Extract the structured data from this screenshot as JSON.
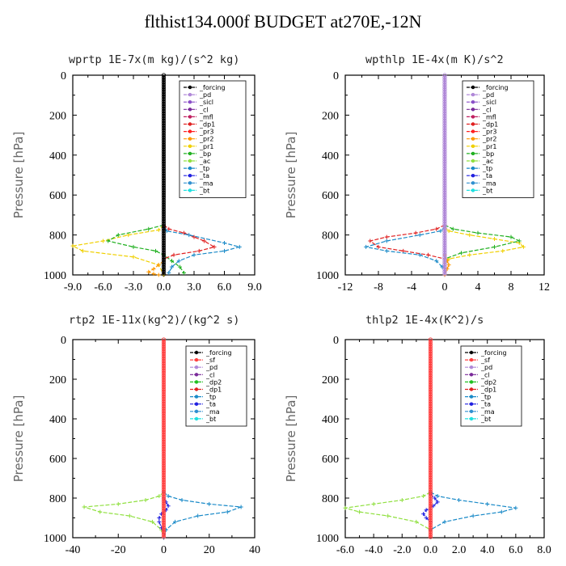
{
  "title": "flthist134.000f  BUDGET at270E,-12N",
  "colors": {
    "forcing": "#000000",
    "pd": "#b088d8",
    "sicl": "#8a4fc8",
    "cl": "#7a2a9a",
    "mfl": "#c02060",
    "dp1": "#e02020",
    "pr3": "#ff2020",
    "pr2": "#ff9900",
    "pr1": "#f0d000",
    "bp": "#20b020",
    "ac": "#90e040",
    "tp": "#1a8ac8",
    "ta": "#2020e0",
    "ma": "#3090d0",
    "bt": "#20e0e0",
    "sf": "#ff4040",
    "dp2": "#20c020"
  },
  "chart_data": [
    {
      "type": "line",
      "title": "wprtp   1E-7x(m kg)/(s^2 kg)",
      "ylabel": "Pressure [hPa]",
      "xlim": [
        -9.0,
        9.0
      ],
      "xticks": [
        -9.0,
        -6.0,
        -3.0,
        0.0,
        3.0,
        6.0,
        9.0
      ],
      "xtick_labels": [
        "-9.0",
        "-6.0",
        "-3.0",
        "0.0",
        "3.0",
        "6.0",
        "9.0"
      ],
      "ylim": [
        1000,
        0
      ],
      "yticks": [
        0,
        200,
        400,
        600,
        800,
        1000
      ],
      "legend": [
        "_forcing",
        "_pd",
        "_sicl",
        "_cl",
        "_mfl",
        "_dp1",
        "_pr3",
        "_pr2",
        "_pr1",
        "_bp",
        "_ac",
        "_tp",
        "_ta",
        "_ma",
        "_bt"
      ],
      "legend_keys": [
        "forcing",
        "pd",
        "sicl",
        "cl",
        "mfl",
        "dp1",
        "pr3",
        "pr2",
        "pr1",
        "bp",
        "ac",
        "tp",
        "ta",
        "ma",
        "bt"
      ],
      "series": [
        {
          "key": "pr1",
          "x": [
            0,
            -0.5,
            -3.5,
            -6,
            -9,
            -8,
            -3,
            -0.5,
            0
          ],
          "y": [
            750,
            775,
            800,
            830,
            855,
            880,
            910,
            950,
            1000
          ]
        },
        {
          "key": "bp",
          "x": [
            0,
            -1.5,
            -4.5,
            -5.5,
            -3,
            -0.8,
            0,
            0.8,
            1.6,
            2
          ],
          "y": [
            750,
            770,
            800,
            830,
            860,
            880,
            900,
            930,
            960,
            990
          ]
        },
        {
          "key": "dp1",
          "x": [
            0,
            0.5,
            2,
            3,
            4,
            5,
            3.5,
            1,
            0
          ],
          "y": [
            750,
            770,
            790,
            810,
            830,
            860,
            880,
            900,
            920
          ]
        },
        {
          "key": "tp",
          "x": [
            0,
            0.3,
            2.5,
            6,
            7.5,
            6,
            3,
            1.5,
            0.8,
            0.5
          ],
          "y": [
            760,
            780,
            800,
            840,
            860,
            880,
            900,
            930,
            960,
            990
          ]
        },
        {
          "key": "pr2",
          "x": [
            0,
            -0.5,
            -1,
            -1.5,
            -1,
            -0.5
          ],
          "y": [
            930,
            950,
            970,
            985,
            995,
            1000
          ]
        },
        {
          "key": "forcing",
          "x": [
            0,
            0,
            0,
            0,
            0,
            0
          ],
          "y": [
            0,
            200,
            400,
            600,
            800,
            1000
          ],
          "markers": true
        }
      ]
    },
    {
      "type": "line",
      "title": "wpthlp   1E-4x(m K)/s^2",
      "ylabel": "Pressure [hPa]",
      "xlim": [
        -12,
        12
      ],
      "xticks": [
        -12,
        -8,
        -4,
        0,
        4,
        8,
        12
      ],
      "xtick_labels": [
        "-12",
        "-8",
        "-4",
        "0",
        "4",
        "8",
        "12"
      ],
      "ylim": [
        1000,
        0
      ],
      "yticks": [
        0,
        200,
        400,
        600,
        800,
        1000
      ],
      "legend": [
        "_forcing",
        "_pd",
        "_sicl",
        "_cl",
        "_mfl",
        "_dp1",
        "_pr3",
        "_pr2",
        "_pr1",
        "_bp",
        "_ac",
        "_tp",
        "_ta",
        "_ma",
        "_bt"
      ],
      "legend_keys": [
        "forcing",
        "pd",
        "sicl",
        "cl",
        "mfl",
        "dp1",
        "pr3",
        "pr2",
        "pr1",
        "bp",
        "ac",
        "tp",
        "ta",
        "ma",
        "bt"
      ],
      "series": [
        {
          "key": "pr1",
          "x": [
            0,
            0.5,
            3,
            6,
            9,
            9.5,
            7,
            3,
            0.5,
            0
          ],
          "y": [
            760,
            780,
            800,
            820,
            840,
            860,
            880,
            900,
            920,
            940
          ]
        },
        {
          "key": "bp",
          "x": [
            0,
            1,
            4,
            8,
            9,
            6,
            2,
            0
          ],
          "y": [
            750,
            770,
            790,
            810,
            830,
            860,
            890,
            920
          ]
        },
        {
          "key": "dp1",
          "x": [
            0,
            -1,
            -3.5,
            -7,
            -9,
            -8,
            -5,
            -2,
            0
          ],
          "y": [
            750,
            770,
            790,
            810,
            830,
            860,
            880,
            900,
            920
          ]
        },
        {
          "key": "tp",
          "x": [
            0,
            -0.5,
            -3,
            -7,
            -9.5,
            -7,
            -3,
            -1,
            -0.3
          ],
          "y": [
            760,
            780,
            800,
            830,
            860,
            880,
            900,
            930,
            960
          ]
        },
        {
          "key": "pr2",
          "x": [
            0,
            0.3,
            0.5,
            0.3,
            0
          ],
          "y": [
            900,
            930,
            950,
            970,
            1000
          ]
        },
        {
          "key": "forcing",
          "x": [
            0,
            0,
            0,
            0,
            0,
            0
          ],
          "y": [
            0,
            200,
            400,
            600,
            800,
            1000
          ],
          "markers": true,
          "color_key": "pd"
        }
      ]
    },
    {
      "type": "line",
      "title": "rtp2   1E-11x(kg^2)/(kg^2 s)",
      "ylabel": "Pressure [hPa]",
      "xlim": [
        -40,
        40
      ],
      "xticks": [
        -40,
        -20,
        0,
        20,
        40
      ],
      "xtick_labels": [
        "-40",
        "-20",
        "0",
        "20",
        "40"
      ],
      "ylim": [
        1000,
        0
      ],
      "yticks": [
        0,
        200,
        400,
        600,
        800,
        1000
      ],
      "legend": [
        "_forcing",
        "_sf",
        "_pd",
        "_cl",
        "_dp2",
        "_dp1",
        "_tp",
        "_ta",
        "_ma",
        "_bt"
      ],
      "legend_keys": [
        "forcing",
        "sf",
        "pd",
        "cl",
        "dp2",
        "dp1",
        "tp",
        "ta",
        "ma",
        "bt"
      ],
      "series": [
        {
          "key": "ac",
          "x": [
            0,
            -2,
            -8,
            -20,
            -35,
            -28,
            -15,
            -5,
            -1,
            0
          ],
          "y": [
            770,
            790,
            810,
            830,
            845,
            870,
            890,
            920,
            960,
            1000
          ]
        },
        {
          "key": "tp",
          "x": [
            0,
            2,
            8,
            20,
            34,
            28,
            15,
            5,
            1,
            0
          ],
          "y": [
            770,
            790,
            810,
            830,
            845,
            870,
            890,
            920,
            960,
            1000
          ]
        },
        {
          "key": "ta",
          "x": [
            0,
            1,
            2,
            1,
            -1,
            -2,
            -2,
            -1,
            0
          ],
          "y": [
            800,
            820,
            840,
            860,
            880,
            900,
            920,
            950,
            980
          ]
        },
        {
          "key": "forcing",
          "x": [
            0,
            0,
            0,
            0,
            0,
            0
          ],
          "y": [
            0,
            200,
            400,
            600,
            800,
            1000
          ],
          "markers": true,
          "color_key": "sf"
        }
      ]
    },
    {
      "type": "line",
      "title": "thlp2   1E-4x(K^2)/s",
      "ylabel": "Pressure [hPa]",
      "xlim": [
        -6.0,
        8.0
      ],
      "xticks": [
        -6.0,
        -4.0,
        -2.0,
        0.0,
        2.0,
        4.0,
        6.0,
        8.0
      ],
      "xtick_labels": [
        "-6.0",
        "-4.0",
        "-2.0",
        "0.0",
        "2.0",
        "4.0",
        "6.0",
        "8.0"
      ],
      "ylim": [
        1000,
        0
      ],
      "yticks": [
        0,
        200,
        400,
        600,
        800,
        1000
      ],
      "legend": [
        "_forcing",
        "_sf",
        "_pd",
        "_cl",
        "_dp2",
        "_dp1",
        "_tp",
        "_ta",
        "_ma",
        "_bt"
      ],
      "legend_keys": [
        "forcing",
        "sf",
        "pd",
        "cl",
        "dp2",
        "dp1",
        "tp",
        "ta",
        "ma",
        "bt"
      ],
      "series": [
        {
          "key": "ac",
          "x": [
            0,
            -0.5,
            -2,
            -4,
            -6,
            -5,
            -3,
            -1,
            0
          ],
          "y": [
            770,
            790,
            810,
            830,
            850,
            870,
            890,
            920,
            960
          ]
        },
        {
          "key": "tp",
          "x": [
            0,
            0.5,
            2,
            4,
            6,
            5,
            3,
            1,
            0
          ],
          "y": [
            770,
            790,
            810,
            830,
            850,
            870,
            890,
            920,
            960
          ]
        },
        {
          "key": "ta",
          "x": [
            0,
            0.3,
            0.5,
            0.2,
            -0.3,
            -0.5,
            -0.3,
            0
          ],
          "y": [
            780,
            800,
            820,
            840,
            860,
            880,
            900,
            920
          ]
        },
        {
          "key": "forcing",
          "x": [
            0,
            0,
            0,
            0,
            0,
            0
          ],
          "y": [
            0,
            200,
            400,
            600,
            800,
            1000
          ],
          "markers": true,
          "color_key": "sf"
        }
      ]
    }
  ]
}
